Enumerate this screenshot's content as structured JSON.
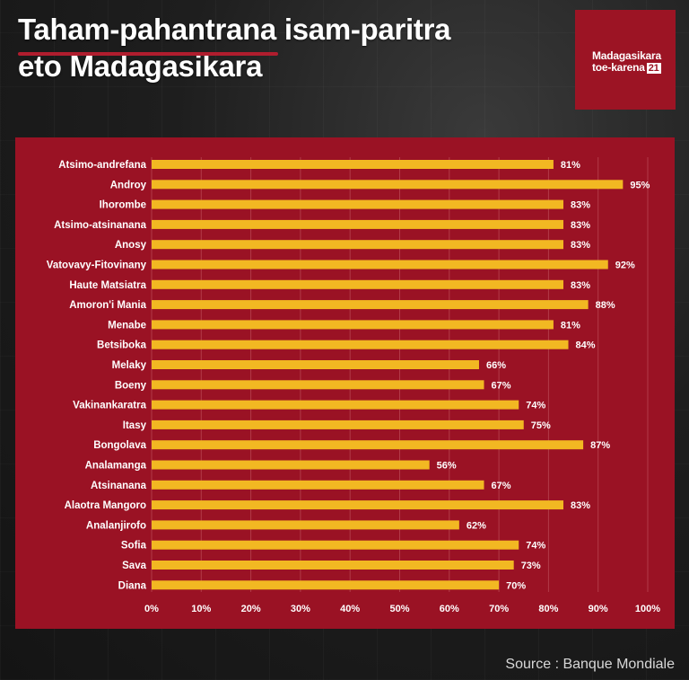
{
  "header": {
    "title_line1": "Taham-pahantrana isam-paritra",
    "title_line2": "eto Madagasikara"
  },
  "logo": {
    "line1": "Madagasikara",
    "line2": "toe-karena",
    "badge": "21"
  },
  "source": "Source : Banque Mondiale",
  "colors": {
    "panel": "#9a1224",
    "bar": "#f2b822",
    "text": "#ffffff",
    "grid": "#b23a48"
  },
  "chart_data": {
    "type": "bar",
    "orientation": "horizontal",
    "categories": [
      "Atsimo-andrefana",
      "Androy",
      "Ihorombe",
      "Atsimo-atsinanana",
      "Anosy",
      "Vatovavy-Fitovinany",
      "Haute Matsiatra",
      "Amoron'i Mania",
      "Menabe",
      "Betsiboka",
      "Melaky",
      "Boeny",
      "Vakinankaratra",
      "Itasy",
      "Bongolava",
      "Analamanga",
      "Atsinanana",
      "Alaotra Mangoro",
      "Analanjirofo",
      "Sofia",
      "Sava",
      "Diana"
    ],
    "values": [
      81,
      95,
      83,
      83,
      83,
      92,
      83,
      88,
      81,
      84,
      66,
      67,
      74,
      75,
      87,
      56,
      67,
      83,
      62,
      74,
      73,
      70
    ],
    "value_labels": [
      "81%",
      "95%",
      "83%",
      "83%",
      "83%",
      "92%",
      "83%",
      "88%",
      "81%",
      "84%",
      "66%",
      "67%",
      "74%",
      "75%",
      "87%",
      "56%",
      "67%",
      "83%",
      "62%",
      "74%",
      "73%",
      "70%"
    ],
    "xlim": [
      0,
      100
    ],
    "xticks": [
      "0%",
      "10%",
      "20%",
      "30%",
      "40%",
      "50%",
      "60%",
      "70%",
      "80%",
      "90%",
      "100%"
    ],
    "grid": true,
    "legend": "none"
  }
}
